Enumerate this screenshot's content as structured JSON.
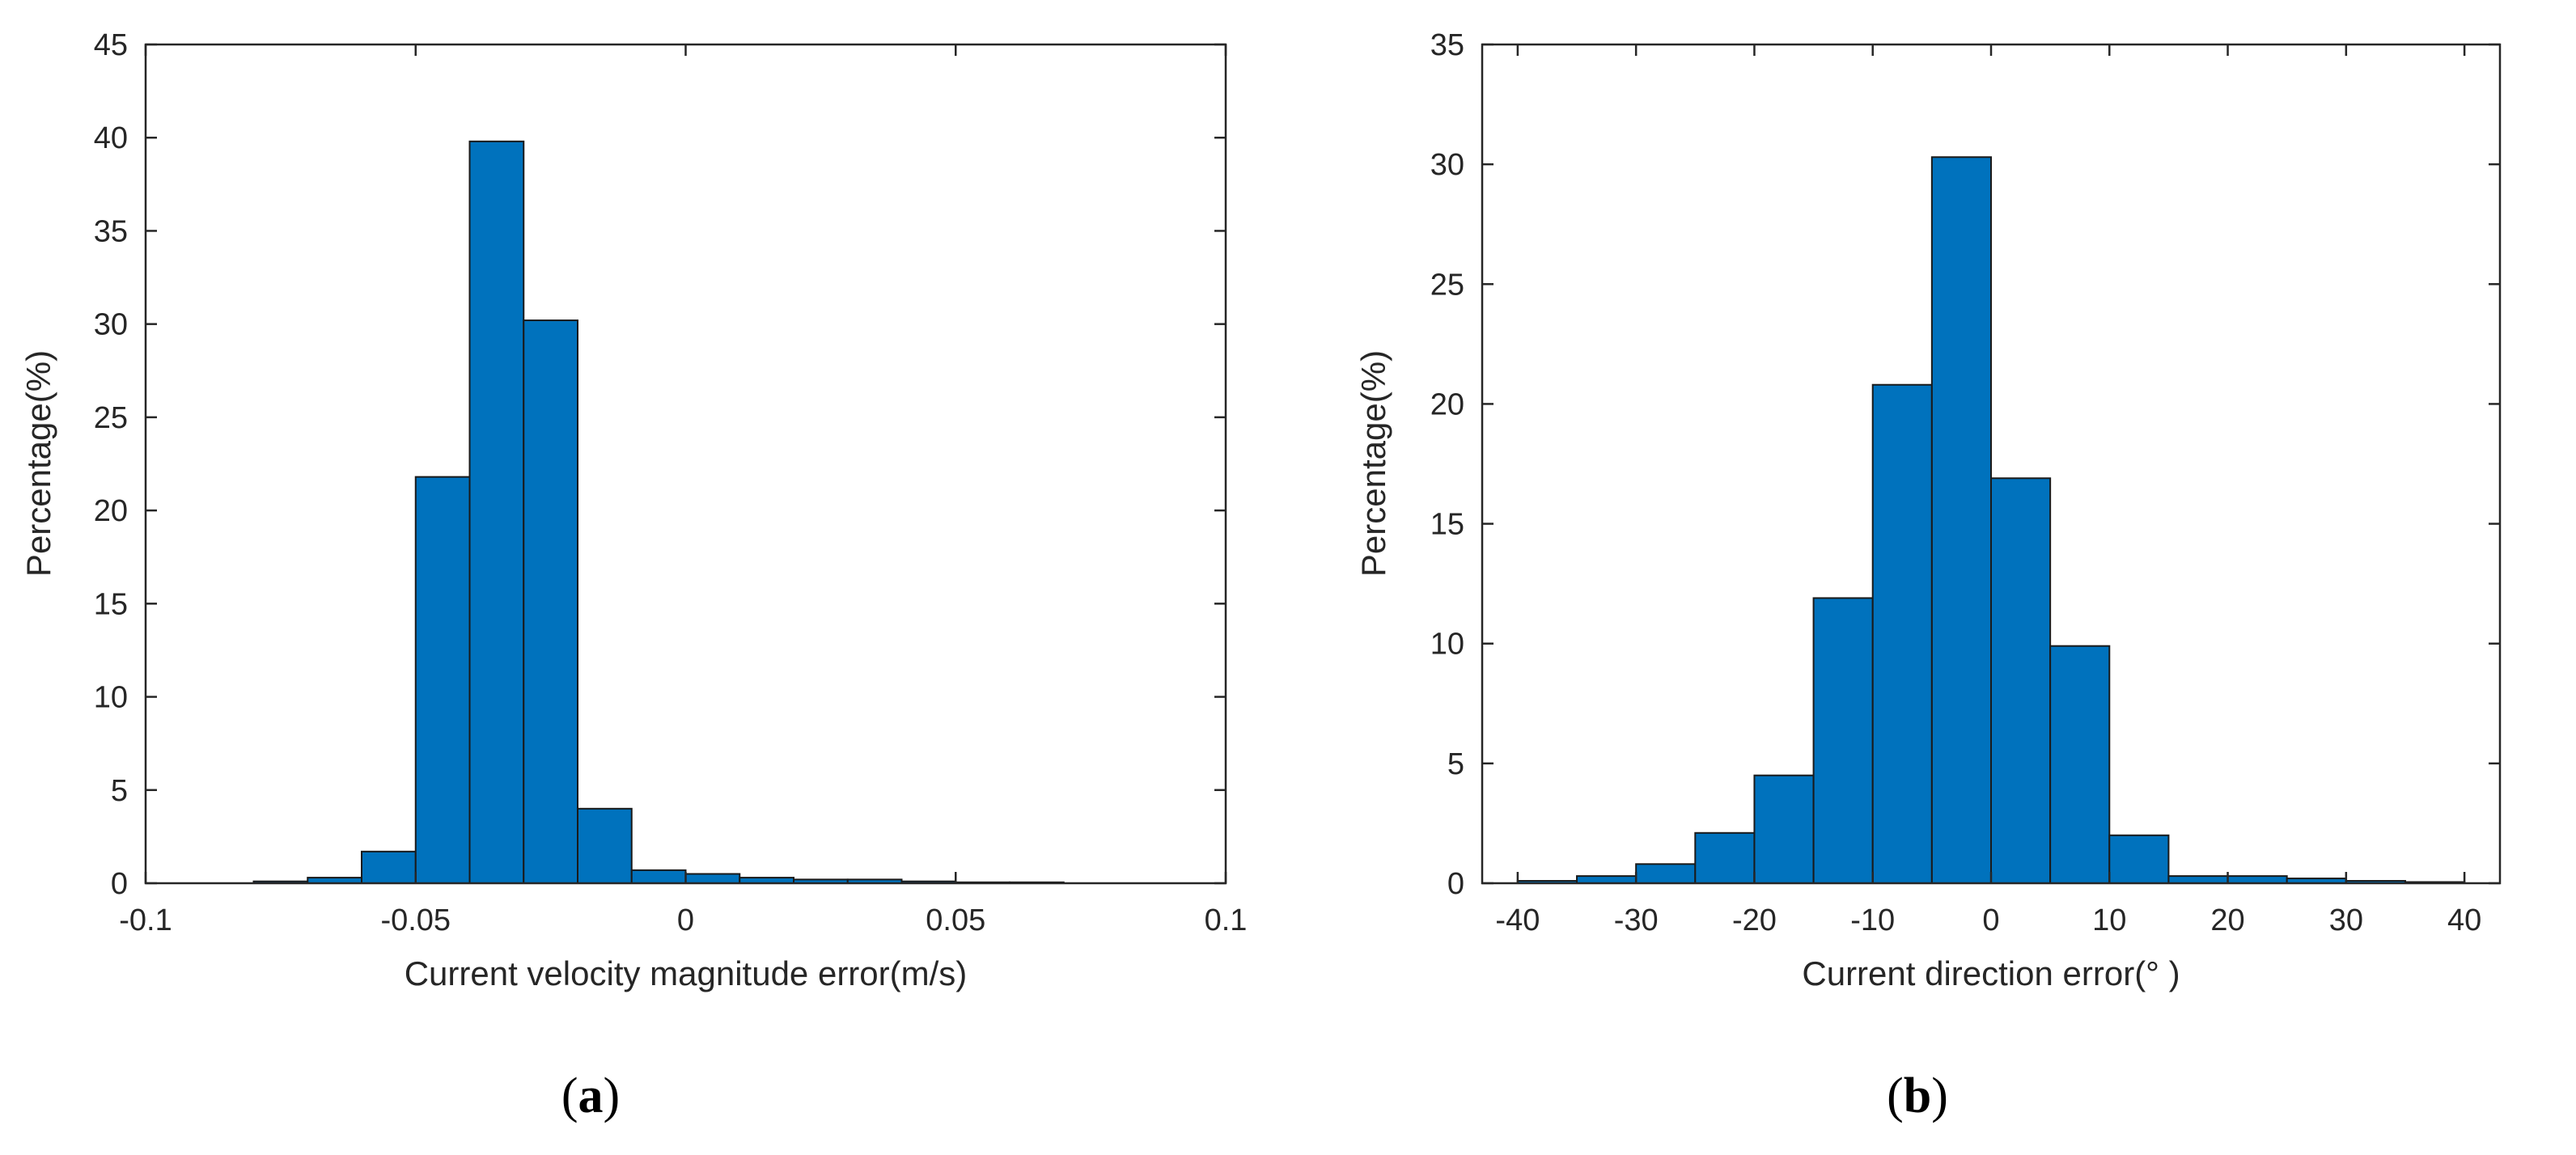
{
  "colors": {
    "bar_fill": "#0072bd",
    "bar_edge": "#1a1a1a",
    "axis": "#262626"
  },
  "chart_data": [
    {
      "type": "bar",
      "panel_label": "(a)",
      "title": "",
      "xlabel": "Current velocity magnitude error(m/s)",
      "ylabel": "Percentage(%)",
      "xlim": [
        -0.1,
        0.1
      ],
      "ylim": [
        0,
        45
      ],
      "xticks": [
        -0.1,
        -0.05,
        0,
        0.05,
        0.1
      ],
      "xtick_labels": [
        "-0.1",
        "-0.05",
        "0",
        "0.05",
        "0.1"
      ],
      "yticks": [
        0,
        5,
        10,
        15,
        20,
        25,
        30,
        35,
        40,
        45
      ],
      "ytick_labels": [
        "0",
        "5",
        "10",
        "15",
        "20",
        "25",
        "30",
        "35",
        "40",
        "45"
      ],
      "grid": false,
      "bin_width": 0.01,
      "bin_edges": [
        -0.08,
        -0.07,
        -0.06,
        -0.05,
        -0.04,
        -0.03,
        -0.02,
        -0.01,
        0,
        0.01,
        0.02,
        0.03,
        0.04,
        0.05,
        0.06,
        0.07
      ],
      "values": [
        0.1,
        0.3,
        1.7,
        21.8,
        39.8,
        30.2,
        4.0,
        0.7,
        0.5,
        0.3,
        0.2,
        0.2,
        0.1,
        0.05,
        0.05
      ]
    },
    {
      "type": "bar",
      "panel_label": "(b)",
      "title": "",
      "xlabel": "Current direction error(° )",
      "ylabel": "Percentage(%)",
      "xlim": [
        -43,
        43
      ],
      "ylim": [
        0,
        35
      ],
      "xticks": [
        -40,
        -30,
        -20,
        -10,
        0,
        10,
        20,
        30,
        40
      ],
      "xtick_labels": [
        "-40",
        "-30",
        "-20",
        "-10",
        "0",
        "10",
        "20",
        "30",
        "40"
      ],
      "yticks": [
        0,
        5,
        10,
        15,
        20,
        25,
        30,
        35
      ],
      "ytick_labels": [
        "0",
        "5",
        "10",
        "15",
        "20",
        "25",
        "30",
        "35"
      ],
      "grid": false,
      "bin_width": 5,
      "bin_edges": [
        -40,
        -35,
        -30,
        -25,
        -20,
        -15,
        -10,
        -5,
        0,
        5,
        10,
        15,
        20,
        25,
        30,
        35,
        40
      ],
      "values": [
        0.1,
        0.3,
        0.8,
        2.1,
        4.5,
        11.9,
        20.8,
        30.3,
        16.9,
        9.9,
        2.0,
        0.3,
        0.3,
        0.2,
        0.1,
        0.05
      ]
    }
  ]
}
